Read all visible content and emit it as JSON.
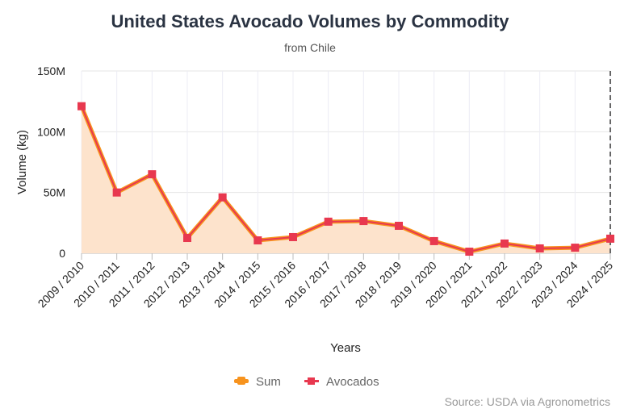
{
  "chart_data": {
    "type": "area",
    "title": "United States Avocado Volumes by Commodity",
    "subtitle": "from Chile",
    "xlabel": "Years",
    "ylabel": "Volume (kg)",
    "ylim": [
      0,
      150000000
    ],
    "yticks": [
      {
        "value": 0,
        "label": "0"
      },
      {
        "value": 50000000,
        "label": "50M"
      },
      {
        "value": 100000000,
        "label": "100M"
      },
      {
        "value": 150000000,
        "label": "150M"
      }
    ],
    "categories": [
      "2009 / 2010",
      "2010 / 2011",
      "2011 / 2012",
      "2012 / 2013",
      "2013 / 2014",
      "2014 / 2015",
      "2015 / 2016",
      "2016 / 2017",
      "2017 / 2018",
      "2018 / 2019",
      "2019 / 2020",
      "2020 / 2021",
      "2021 / 2022",
      "2022 / 2023",
      "2023 / 2024",
      "2024 / 2025"
    ],
    "series": [
      {
        "name": "Sum",
        "color": "#f7931e",
        "values": [
          121000000,
          50000000,
          65000000,
          12600000,
          46000000,
          10600000,
          13300000,
          26000000,
          26500000,
          22600000,
          10000000,
          1300000,
          8000000,
          4000000,
          4600000,
          12000000
        ]
      },
      {
        "name": "Avocados",
        "color": "#e8384f",
        "values": [
          121000000,
          50000000,
          65000000,
          12600000,
          46000000,
          10600000,
          13300000,
          26000000,
          26500000,
          22600000,
          10000000,
          1300000,
          8000000,
          4000000,
          4600000,
          12000000
        ]
      }
    ],
    "grid": true,
    "legend": "bottom-center",
    "source": "Source: USDA via Agronometrics"
  }
}
